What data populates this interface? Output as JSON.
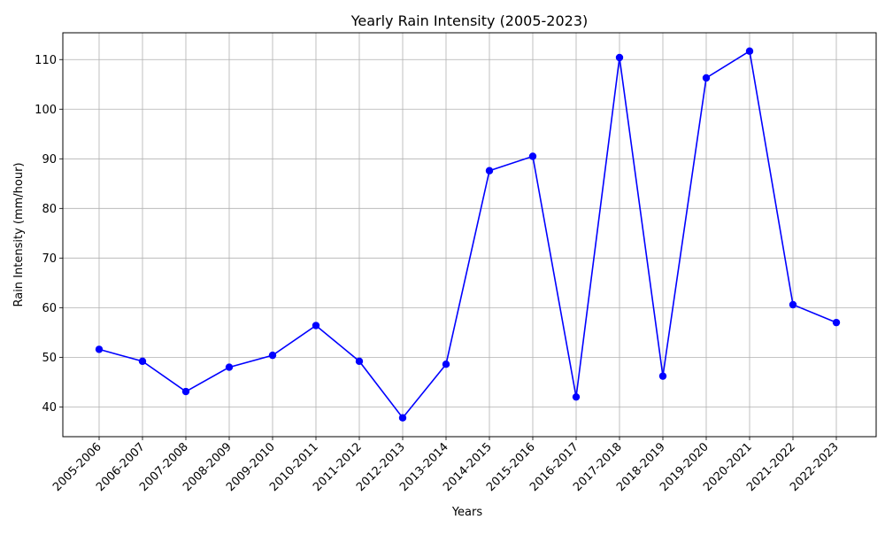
{
  "colors": {
    "line": "#0000ff",
    "marker": "#0000ff",
    "grid": "#b0b0b0",
    "axes": "#000000",
    "background": "#ffffff"
  },
  "chart_data": {
    "type": "line",
    "title": "Yearly Rain Intensity (2005-2023)",
    "xlabel": "Years",
    "ylabel": "Rain Intensity (mm/hour)",
    "categories": [
      "2005-2006",
      "2006-2007",
      "2007-2008",
      "2008-2009",
      "2009-2010",
      "2010-2011",
      "2011-2012",
      "2012-2013",
      "2013-2014",
      "2014-2015",
      "2015-2016",
      "2016-2017",
      "2017-2018",
      "2018-2019",
      "2019-2020",
      "2020-2021",
      "2021-2022",
      "2022-2023"
    ],
    "series": [
      {
        "values": [
          51.6,
          49.2,
          43.1,
          48.0,
          50.4,
          56.4,
          49.2,
          37.8,
          48.6,
          87.6,
          90.5,
          42.0,
          110.4,
          46.2,
          106.3,
          111.7,
          60.6,
          57.0
        ],
        "marker": "circle"
      }
    ],
    "ylim": [
      34.0,
      115.4
    ],
    "yticks": [
      40,
      50,
      60,
      70,
      80,
      90,
      100,
      110
    ],
    "grid": true,
    "legend": "none"
  }
}
